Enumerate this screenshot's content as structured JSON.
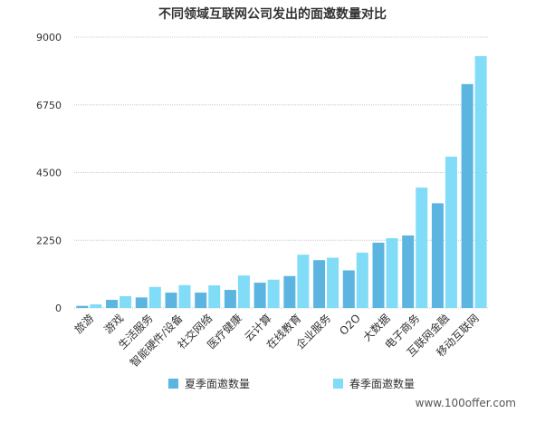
{
  "chart_data": {
    "type": "bar",
    "title": "不同领域互联网公司发出的面邀数量对比",
    "categories": [
      "旅游",
      "游戏",
      "生活服务",
      "智能硬件/设备",
      "社交网络",
      "医疗健康",
      "云计算",
      "在线教育",
      "企业服务",
      "O2O",
      "大数据",
      "电子商务",
      "互联网金融",
      "移动互联网"
    ],
    "series": [
      {
        "name": "夏季面邀数量",
        "color": "#5bb5e0",
        "values": [
          70,
          270,
          350,
          510,
          510,
          600,
          840,
          1060,
          1590,
          1250,
          2170,
          2410,
          3480,
          7440
        ]
      },
      {
        "name": "春季面邀数量",
        "color": "#80dcf7",
        "values": [
          120,
          390,
          700,
          760,
          750,
          1080,
          940,
          1770,
          1670,
          1840,
          2320,
          4000,
          5030,
          8370
        ]
      }
    ],
    "yticks": [
      "0",
      "2250",
      "4500",
      "6750",
      "9000"
    ],
    "ylim": [
      0,
      9000
    ],
    "xlabel": "",
    "ylabel": "",
    "grid": true,
    "legend": "bottom"
  },
  "footer": {
    "watermark": "www.100offer.com"
  }
}
